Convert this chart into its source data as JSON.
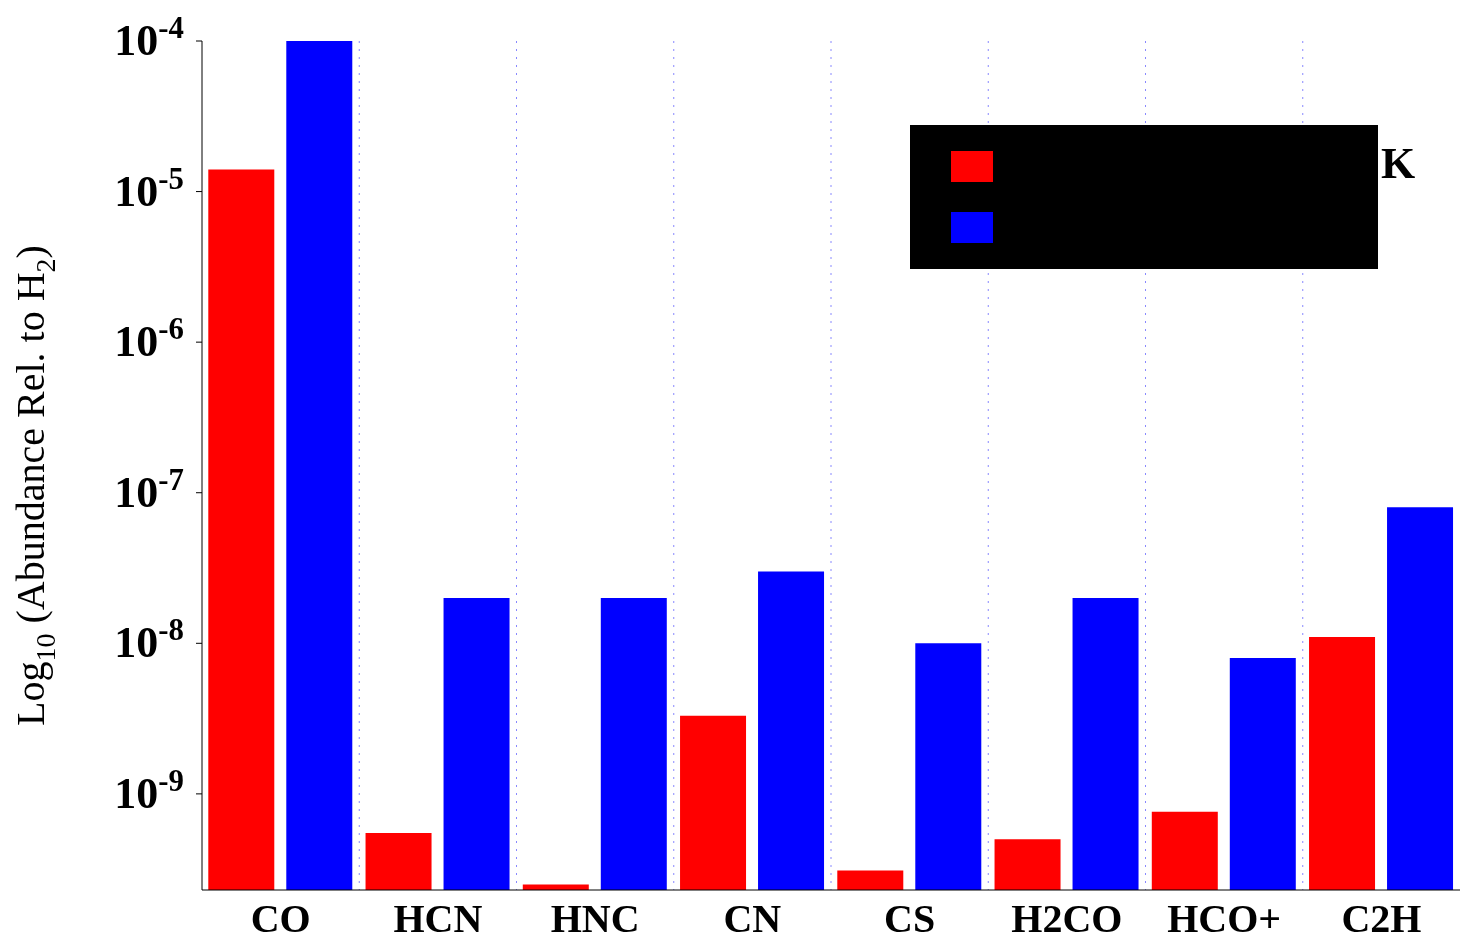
{
  "chart_data": {
    "type": "bar",
    "ylabel": "Log$_{10}$ (Abundance Rel. to H$_{2}$)",
    "categories": [
      "CO",
      "HCN",
      "HNC",
      "CN",
      "CS",
      "H2CO",
      "HCO+",
      "C2H"
    ],
    "series": [
      {
        "color": "#ff0000",
        "values": [
          1.4e-05,
          5.5e-10,
          2.5e-10,
          3.3e-09,
          3.1e-10,
          5e-10,
          7.6e-10,
          1.1e-08
        ]
      },
      {
        "color": "#0000ff",
        "values": [
          0.0001,
          2e-08,
          2e-08,
          3e-08,
          1e-08,
          2e-08,
          8e-09,
          8e-08
        ]
      }
    ],
    "log": "y",
    "ylim": [
      2.3e-10,
      0.0001
    ],
    "yticks": [
      {
        "value": 1e-09,
        "label": "10$^{-9}$"
      },
      {
        "value": 1e-08,
        "label": "10$^{-8}$"
      },
      {
        "value": 1e-07,
        "label": "10$^{-7}$"
      },
      {
        "value": 1e-06,
        "label": "10$^{-6}$"
      },
      {
        "value": 1e-05,
        "label": "10$^{-5}$"
      },
      {
        "value": 0.0001,
        "label": "10$^{-4}$"
      }
    ],
    "grid": "x",
    "annotations": [
      "K"
    ]
  }
}
